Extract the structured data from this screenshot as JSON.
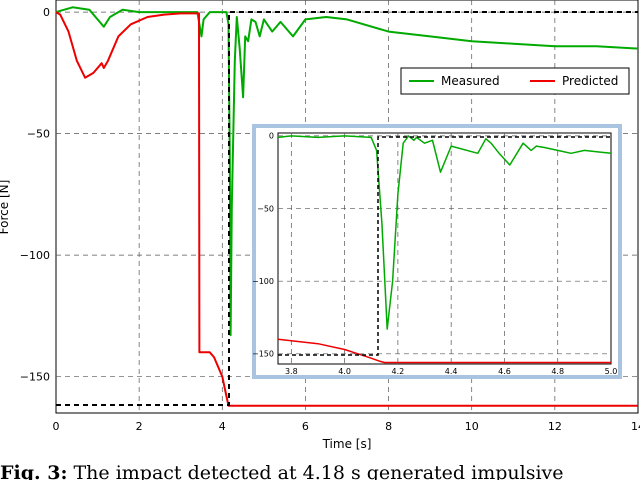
{
  "chart_data": [
    {
      "type": "line",
      "title": "",
      "xlabel": "Time [s]",
      "ylabel": "Force [N]",
      "xlim": [
        0,
        14
      ],
      "ylim": [
        -165,
        5
      ],
      "xticks": [
        0,
        2,
        4,
        6,
        8,
        10,
        12,
        14
      ],
      "yticks": [
        0,
        -50,
        -100,
        -150
      ],
      "grid": true,
      "legend_position": "upper-right",
      "series": [
        {
          "name": "Measured",
          "color": "#00aa00",
          "x": [
            0,
            0.4,
            0.8,
            1.05,
            1.15,
            1.3,
            1.6,
            2.0,
            2.5,
            3.0,
            3.4,
            3.5,
            3.55,
            3.7,
            4.0,
            4.1,
            4.15,
            4.18,
            4.2,
            4.23,
            4.3,
            4.35,
            4.42,
            4.5,
            4.55,
            4.62,
            4.7,
            4.8,
            4.9,
            5.0,
            5.2,
            5.4,
            5.7,
            6.0,
            6.5,
            7.0,
            8.0,
            9.0,
            10.0,
            11.0,
            12.0,
            13.0,
            14.0
          ],
          "y": [
            0,
            2,
            1,
            -4,
            -6,
            -2,
            1,
            0,
            0,
            0,
            0,
            -10,
            -3,
            0,
            0,
            0,
            -5,
            -60,
            -133,
            -80,
            -20,
            -2,
            -15,
            -35,
            -10,
            -12,
            -3,
            -4,
            -10,
            -3,
            -8,
            -4,
            -10,
            -3,
            -2,
            -3,
            -8,
            -10,
            -12,
            -13,
            -14,
            -14,
            -15
          ]
        },
        {
          "name": "Predicted",
          "color": "#ee0000",
          "x": [
            0,
            0.1,
            0.3,
            0.5,
            0.7,
            0.9,
            1.1,
            1.15,
            1.25,
            1.5,
            1.8,
            2.2,
            2.6,
            3.0,
            3.4,
            3.44,
            3.45,
            3.7,
            3.8,
            4.0,
            4.1,
            4.15,
            4.2,
            14.0
          ],
          "y": [
            0,
            -1,
            -8,
            -20,
            -27,
            -25,
            -21,
            -23,
            -20,
            -10,
            -5,
            -2,
            -1,
            -0.5,
            -0.5,
            -0.5,
            -140,
            -140,
            -142,
            -150,
            -158,
            -162,
            -162,
            -162
          ]
        }
      ],
      "annotations": [
        "dashed rectangle marking zoom region"
      ]
    },
    {
      "type": "line",
      "title": "",
      "xlabel": "",
      "ylabel": "",
      "xlim": [
        3.75,
        5.0
      ],
      "ylim": [
        -157,
        2
      ],
      "xticks": [
        "3.8",
        "4.0",
        "4.2",
        "4.4",
        "4.6",
        "4.8",
        "5.0"
      ],
      "yticks": [
        "0",
        "-50",
        "-100",
        "-150"
      ],
      "grid": true,
      "frame_color": "#a8c4e0",
      "series": [
        {
          "color": "#00aa00",
          "x": [
            3.75,
            3.8,
            3.9,
            4.0,
            4.1,
            4.12,
            4.14,
            4.16,
            4.18,
            4.2,
            4.22,
            4.24,
            4.26,
            4.27,
            4.3,
            4.33,
            4.36,
            4.4,
            4.5,
            4.53,
            4.55,
            4.58,
            4.62,
            4.67,
            4.7,
            4.72,
            4.75,
            4.8,
            4.85,
            4.9,
            4.95,
            5.0
          ],
          "y": [
            -1,
            0,
            -1,
            0,
            -1,
            -10,
            -60,
            -133,
            -100,
            -40,
            -5,
            0,
            -3,
            -1,
            -5,
            -3,
            -25,
            -7,
            -12,
            -2,
            -5,
            -12,
            -20,
            -5,
            -10,
            -7,
            -8,
            -10,
            -12,
            -10,
            -11,
            -12
          ]
        },
        {
          "color": "#ee0000",
          "x": [
            3.75,
            3.8,
            3.9,
            4.0,
            4.05,
            4.1,
            4.13,
            4.15,
            5.0
          ],
          "y": [
            -140,
            -141,
            -143,
            -147,
            -150,
            -153,
            -155,
            -156,
            -156
          ]
        }
      ]
    }
  ],
  "caption": {
    "label": "Fig. 3:",
    "text": " The impact detected at 4.18 s generated impulsive"
  }
}
